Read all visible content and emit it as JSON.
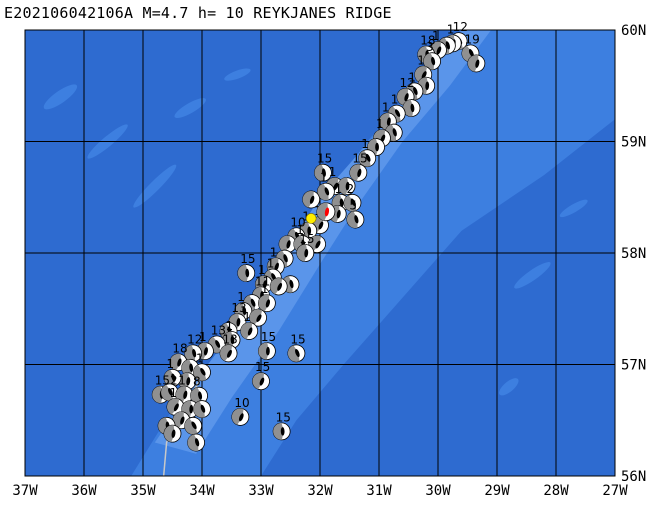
{
  "title": "E202106042106A M=4.7 h= 10 REYKJANES RIDGE",
  "map": {
    "lon_min": -37,
    "lon_max": -27,
    "lat_min": 56,
    "lat_max": 60,
    "colors": {
      "ocean_deep": "#2e6bd0",
      "ocean_mid": "#3d7fe0",
      "ridge_shallow": "#5a95ea",
      "grid": "#000000",
      "track": "#c8c8c8",
      "mechanism_fill": "#ffffff",
      "mechanism_compress": "#000000",
      "mechanism_gray": "#909090",
      "main_event": "#ff0000",
      "epicenter_star": "#ffee00"
    },
    "lon_ticks": [
      "37W",
      "36W",
      "35W",
      "34W",
      "33W",
      "32W",
      "31W",
      "30W",
      "29W",
      "28W",
      "27W"
    ],
    "lat_ticks": [
      "56N",
      "57N",
      "58N",
      "59N",
      "60N"
    ]
  },
  "main_event": {
    "lon": -31.9,
    "lat": 58.37
  },
  "epicenter": {
    "lon": -32.15,
    "lat": 58.31
  },
  "mechanisms": [
    {
      "lon": -29.65,
      "lat": 59.9,
      "label": "12"
    },
    {
      "lon": -29.75,
      "lat": 59.88,
      "label": "1"
    },
    {
      "lon": -29.85,
      "lat": 59.86,
      "label": ""
    },
    {
      "lon": -30.0,
      "lat": 59.82,
      "label": "1"
    },
    {
      "lon": -30.2,
      "lat": 59.78,
      "label": "18"
    },
    {
      "lon": -29.45,
      "lat": 59.79,
      "label": "19"
    },
    {
      "lon": -29.35,
      "lat": 59.7,
      "label": ""
    },
    {
      "lon": -30.1,
      "lat": 59.72,
      "label": "3"
    },
    {
      "lon": -30.25,
      "lat": 59.6,
      "label": "1"
    },
    {
      "lon": -30.2,
      "lat": 59.5,
      "label": ""
    },
    {
      "lon": -30.4,
      "lat": 59.45,
      "label": "1"
    },
    {
      "lon": -30.55,
      "lat": 59.4,
      "label": "12"
    },
    {
      "lon": -30.45,
      "lat": 59.3,
      "label": ""
    },
    {
      "lon": -30.7,
      "lat": 59.25,
      "label": "1"
    },
    {
      "lon": -30.85,
      "lat": 59.18,
      "label": "1"
    },
    {
      "lon": -30.75,
      "lat": 59.08,
      "label": ""
    },
    {
      "lon": -30.95,
      "lat": 59.03,
      "label": "1"
    },
    {
      "lon": -31.05,
      "lat": 58.95,
      "label": ""
    },
    {
      "lon": -31.2,
      "lat": 58.85,
      "label": "1"
    },
    {
      "lon": -31.35,
      "lat": 58.72,
      "label": "15"
    },
    {
      "lon": -31.95,
      "lat": 58.72,
      "label": "15"
    },
    {
      "lon": -31.75,
      "lat": 58.6,
      "label": "1"
    },
    {
      "lon": -31.55,
      "lat": 58.6,
      "label": ""
    },
    {
      "lon": -31.9,
      "lat": 58.55,
      "label": "1"
    },
    {
      "lon": -32.15,
      "lat": 58.48,
      "label": ""
    },
    {
      "lon": -31.65,
      "lat": 58.45,
      "label": "1"
    },
    {
      "lon": -31.45,
      "lat": 58.45,
      "label": "2"
    },
    {
      "lon": -31.7,
      "lat": 58.35,
      "label": ""
    },
    {
      "lon": -31.4,
      "lat": 58.3,
      "label": "5"
    },
    {
      "lon": -32.0,
      "lat": 58.25,
      "label": "1"
    },
    {
      "lon": -32.2,
      "lat": 58.2,
      "label": "1"
    },
    {
      "lon": -32.4,
      "lat": 58.15,
      "label": "10"
    },
    {
      "lon": -32.55,
      "lat": 58.08,
      "label": ""
    },
    {
      "lon": -32.3,
      "lat": 58.08,
      "label": "1"
    },
    {
      "lon": -32.05,
      "lat": 58.08,
      "label": ""
    },
    {
      "lon": -32.25,
      "lat": 58.0,
      "label": "15"
    },
    {
      "lon": -32.6,
      "lat": 57.95,
      "label": ""
    },
    {
      "lon": -32.75,
      "lat": 57.88,
      "label": "1"
    },
    {
      "lon": -33.25,
      "lat": 57.82,
      "label": "15"
    },
    {
      "lon": -32.8,
      "lat": 57.78,
      "label": "1"
    },
    {
      "lon": -32.95,
      "lat": 57.72,
      "label": "1"
    },
    {
      "lon": -32.5,
      "lat": 57.72,
      "label": ""
    },
    {
      "lon": -32.7,
      "lat": 57.7,
      "label": ""
    },
    {
      "lon": -33.0,
      "lat": 57.62,
      "label": "11"
    },
    {
      "lon": -33.15,
      "lat": 57.55,
      "label": ""
    },
    {
      "lon": -32.9,
      "lat": 57.55,
      "label": "1"
    },
    {
      "lon": -33.3,
      "lat": 57.48,
      "label": "1"
    },
    {
      "lon": -33.05,
      "lat": 57.42,
      "label": ""
    },
    {
      "lon": -33.4,
      "lat": 57.38,
      "label": "13"
    },
    {
      "lon": -33.55,
      "lat": 57.3,
      "label": ""
    },
    {
      "lon": -33.2,
      "lat": 57.3,
      "label": "1"
    },
    {
      "lon": -33.5,
      "lat": 57.22,
      "label": "1"
    },
    {
      "lon": -33.75,
      "lat": 57.18,
      "label": "13"
    },
    {
      "lon": -33.95,
      "lat": 57.12,
      "label": "1"
    },
    {
      "lon": -34.15,
      "lat": 57.1,
      "label": "12"
    },
    {
      "lon": -33.55,
      "lat": 57.1,
      "label": "13"
    },
    {
      "lon": -32.9,
      "lat": 57.12,
      "label": "15"
    },
    {
      "lon": -32.4,
      "lat": 57.1,
      "label": "15"
    },
    {
      "lon": -34.4,
      "lat": 57.02,
      "label": "18"
    },
    {
      "lon": -34.2,
      "lat": 56.97,
      "label": ""
    },
    {
      "lon": -34.0,
      "lat": 56.93,
      "label": "1"
    },
    {
      "lon": -34.25,
      "lat": 56.85,
      "label": ""
    },
    {
      "lon": -34.5,
      "lat": 56.88,
      "label": "1"
    },
    {
      "lon": -33.0,
      "lat": 56.85,
      "label": "15"
    },
    {
      "lon": -34.7,
      "lat": 56.73,
      "label": "152"
    },
    {
      "lon": -34.55,
      "lat": 56.75,
      "label": ""
    },
    {
      "lon": -34.3,
      "lat": 56.73,
      "label": "1"
    },
    {
      "lon": -34.05,
      "lat": 56.72,
      "label": "8"
    },
    {
      "lon": -34.45,
      "lat": 56.62,
      "label": "1"
    },
    {
      "lon": -34.2,
      "lat": 56.6,
      "label": ""
    },
    {
      "lon": -34.0,
      "lat": 56.6,
      "label": ""
    },
    {
      "lon": -34.35,
      "lat": 56.5,
      "label": ""
    },
    {
      "lon": -34.6,
      "lat": 56.45,
      "label": ""
    },
    {
      "lon": -34.15,
      "lat": 56.45,
      "label": ""
    },
    {
      "lon": -34.5,
      "lat": 56.38,
      "label": ""
    },
    {
      "lon": -34.1,
      "lat": 56.3,
      "label": ""
    },
    {
      "lon": -33.35,
      "lat": 56.53,
      "label": "10"
    },
    {
      "lon": -32.65,
      "lat": 56.4,
      "label": "15"
    }
  ]
}
